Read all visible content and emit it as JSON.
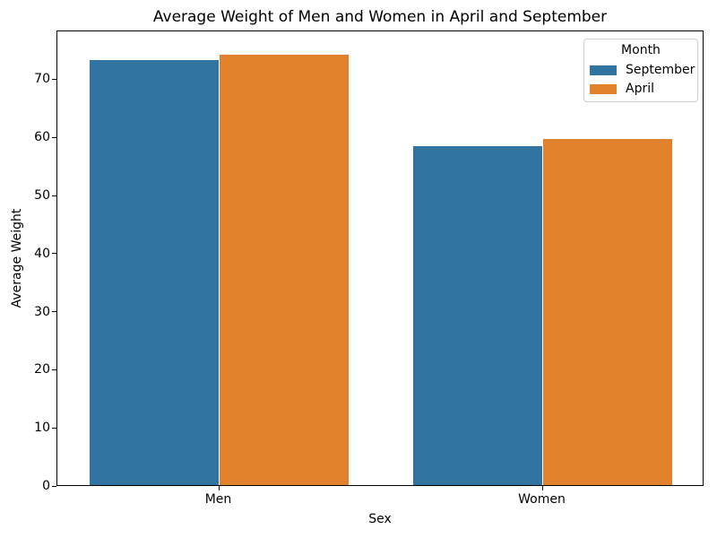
{
  "figure": {
    "background": "#ffffff",
    "axis_color": "#000000"
  },
  "chart_data": {
    "type": "bar",
    "title": "Average Weight of Men and Women in April and September",
    "xlabel": "Sex",
    "ylabel": "Average Weight",
    "categories": [
      "Men",
      "Women"
    ],
    "series": [
      {
        "name": "September",
        "color": "#3274a1",
        "values": [
          73.2,
          58.4
        ]
      },
      {
        "name": "April",
        "color": "#e1812c",
        "values": [
          74.1,
          59.6
        ]
      }
    ],
    "ylim": [
      0,
      78.4
    ],
    "yticks": [
      0,
      10,
      20,
      30,
      40,
      50,
      60,
      70
    ],
    "bar_group_width": 0.8,
    "grid": false,
    "legend": {
      "title": "Month",
      "position": "upper right"
    }
  }
}
